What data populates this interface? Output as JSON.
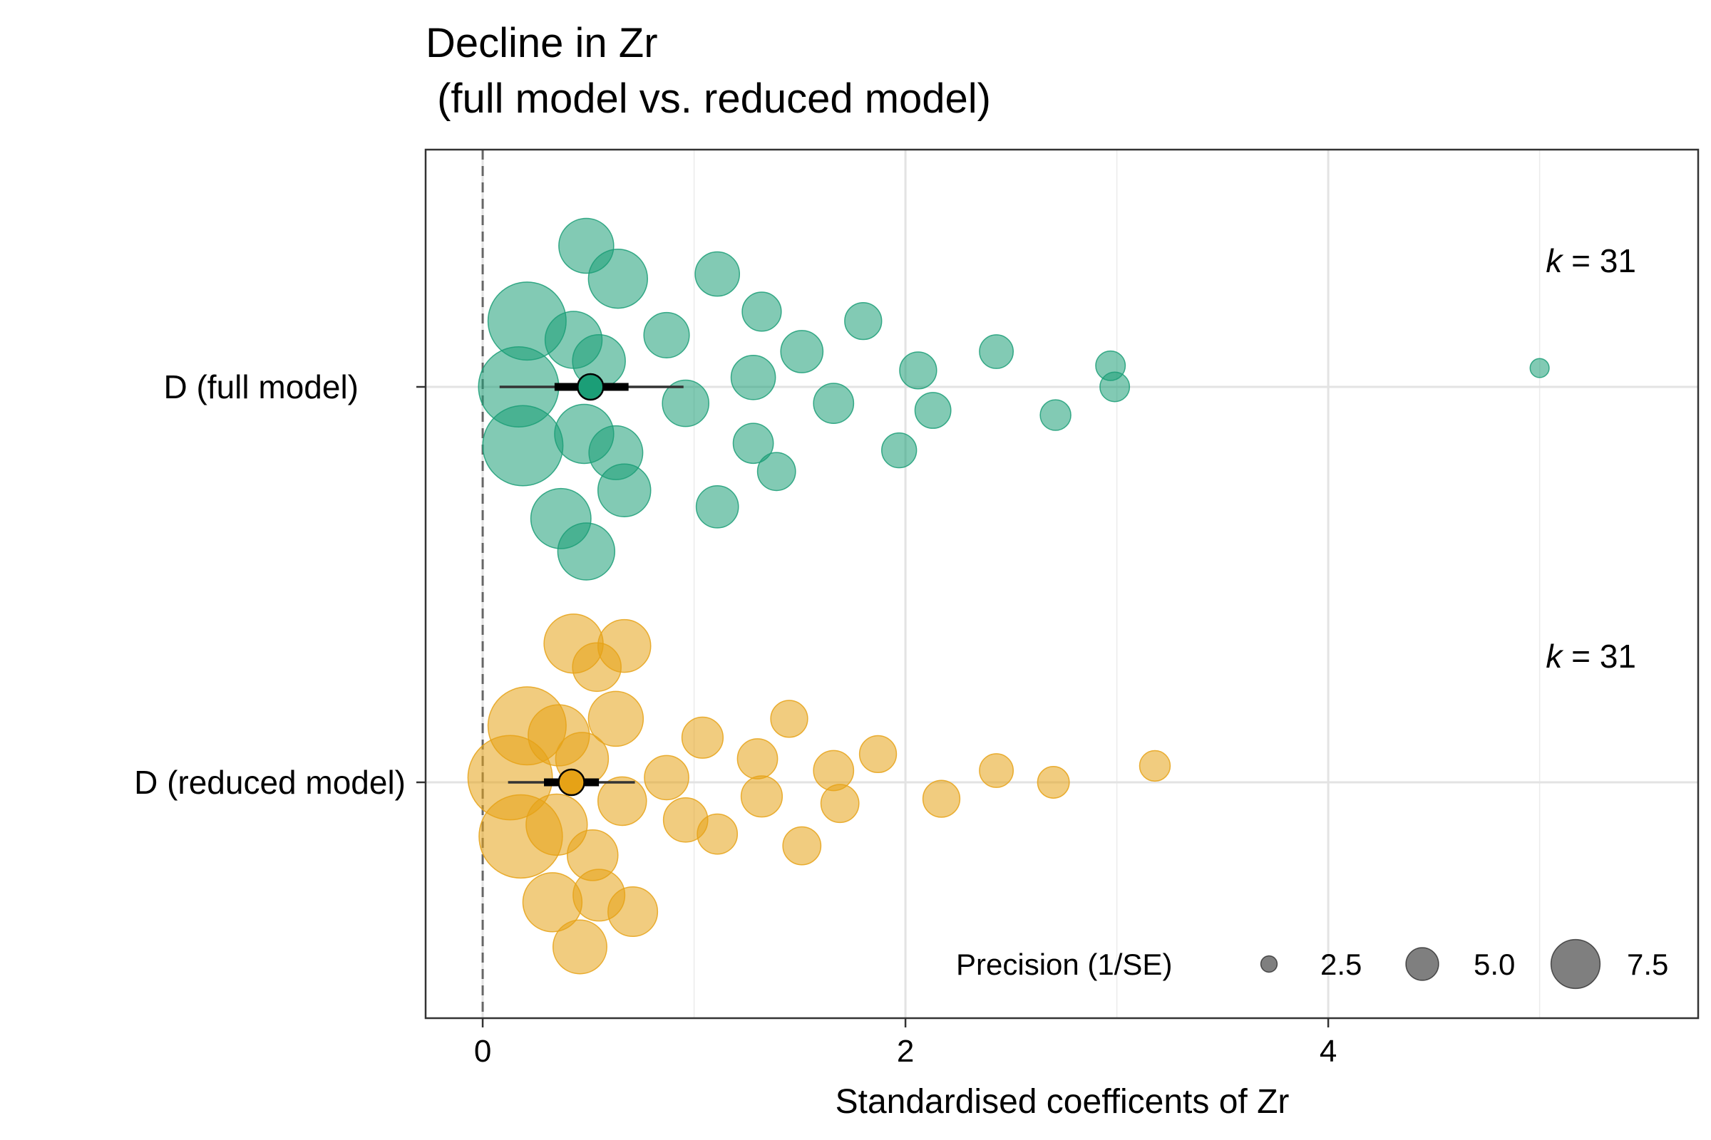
{
  "chart_data": {
    "type": "scatter",
    "subtype": "orchard-plot",
    "title_line1": "Decline in Zr",
    "title_line2": " (full model vs. reduced model)",
    "xlabel": "Standardised coefficents of Zr",
    "ylabel": "",
    "xlim": [
      -0.27,
      5.75
    ],
    "x_ticks": [
      0,
      2,
      4
    ],
    "x_tick_labels": [
      "0",
      "2",
      "4"
    ],
    "x_minor_gridlines": [
      1,
      3,
      5
    ],
    "reference_line_x": 0,
    "grid": true,
    "legend": {
      "title": "Precision (1/SE)",
      "placement": "bottom-right",
      "entries": [
        {
          "label": "2.5",
          "value": 2.5
        },
        {
          "label": "5.0",
          "value": 5.0
        },
        {
          "label": "7.5",
          "value": 7.5
        }
      ]
    },
    "k_label_prefix": "k",
    "k_label_eq": " = ",
    "series": [
      {
        "name": "D (full model)",
        "color": "#1B9E77",
        "k": "31",
        "estimate": 0.51,
        "ci": [
          0.34,
          0.69
        ],
        "pi": [
          0.08,
          0.95
        ],
        "points": [
          {
            "x": 0.49,
            "jitter": 0.3,
            "precision": 5.2
          },
          {
            "x": 0.64,
            "jitter": 0.23,
            "precision": 5.6
          },
          {
            "x": 1.11,
            "jitter": 0.24,
            "precision": 4.2
          },
          {
            "x": 1.32,
            "jitter": 0.16,
            "precision": 3.7
          },
          {
            "x": 1.8,
            "jitter": 0.14,
            "precision": 3.5
          },
          {
            "x": 0.21,
            "jitter": 0.14,
            "precision": 7.4
          },
          {
            "x": 0.43,
            "jitter": 0.1,
            "precision": 5.4
          },
          {
            "x": 0.87,
            "jitter": 0.11,
            "precision": 4.3
          },
          {
            "x": 1.51,
            "jitter": 0.075,
            "precision": 4.0
          },
          {
            "x": 2.43,
            "jitter": 0.075,
            "precision": 3.2
          },
          {
            "x": 0.55,
            "jitter": 0.055,
            "precision": 5.0
          },
          {
            "x": 2.06,
            "jitter": 0.035,
            "precision": 3.5
          },
          {
            "x": 2.97,
            "jitter": 0.045,
            "precision": 2.8
          },
          {
            "x": 5.0,
            "jitter": 0.04,
            "precision": 1.8
          },
          {
            "x": 1.28,
            "jitter": 0.02,
            "precision": 4.2
          },
          {
            "x": 0.17,
            "jitter": 0.0,
            "precision": 7.6
          },
          {
            "x": 2.99,
            "jitter": 0.0,
            "precision": 2.8
          },
          {
            "x": 0.96,
            "jitter": -0.035,
            "precision": 4.4
          },
          {
            "x": 1.66,
            "jitter": -0.035,
            "precision": 3.8
          },
          {
            "x": 2.13,
            "jitter": -0.05,
            "precision": 3.4
          },
          {
            "x": 2.71,
            "jitter": -0.06,
            "precision": 2.9
          },
          {
            "x": 0.48,
            "jitter": -0.1,
            "precision": 5.6
          },
          {
            "x": 0.19,
            "jitter": -0.125,
            "precision": 7.6
          },
          {
            "x": 0.63,
            "jitter": -0.14,
            "precision": 5.1
          },
          {
            "x": 1.28,
            "jitter": -0.12,
            "precision": 3.8
          },
          {
            "x": 1.97,
            "jitter": -0.135,
            "precision": 3.3
          },
          {
            "x": 1.39,
            "jitter": -0.18,
            "precision": 3.6
          },
          {
            "x": 0.67,
            "jitter": -0.22,
            "precision": 5.0
          },
          {
            "x": 1.11,
            "jitter": -0.255,
            "precision": 4.0
          },
          {
            "x": 0.37,
            "jitter": -0.28,
            "precision": 5.7
          },
          {
            "x": 0.49,
            "jitter": -0.35,
            "precision": 5.4
          }
        ]
      },
      {
        "name": "D (reduced model)",
        "color": "#E6A216",
        "k": "31",
        "estimate": 0.42,
        "ci": [
          0.29,
          0.55
        ],
        "pi": [
          0.12,
          0.72
        ],
        "points": [
          {
            "x": 0.43,
            "jitter": 0.295,
            "precision": 5.6
          },
          {
            "x": 0.67,
            "jitter": 0.29,
            "precision": 5.0
          },
          {
            "x": 0.54,
            "jitter": 0.245,
            "precision": 4.6
          },
          {
            "x": 0.21,
            "jitter": 0.12,
            "precision": 7.4
          },
          {
            "x": 0.36,
            "jitter": 0.1,
            "precision": 5.8
          },
          {
            "x": 0.63,
            "jitter": 0.135,
            "precision": 5.2
          },
          {
            "x": 1.04,
            "jitter": 0.095,
            "precision": 3.9
          },
          {
            "x": 1.45,
            "jitter": 0.135,
            "precision": 3.5
          },
          {
            "x": 0.47,
            "jitter": 0.05,
            "precision": 5.0
          },
          {
            "x": 1.3,
            "jitter": 0.05,
            "precision": 3.8
          },
          {
            "x": 1.87,
            "jitter": 0.06,
            "precision": 3.5
          },
          {
            "x": 0.13,
            "jitter": 0.01,
            "precision": 8.0
          },
          {
            "x": 0.87,
            "jitter": 0.01,
            "precision": 4.2
          },
          {
            "x": 1.66,
            "jitter": 0.025,
            "precision": 3.8
          },
          {
            "x": 2.43,
            "jitter": 0.025,
            "precision": 3.2
          },
          {
            "x": 3.18,
            "jitter": 0.035,
            "precision": 2.9
          },
          {
            "x": 2.7,
            "jitter": 0.0,
            "precision": 3.0
          },
          {
            "x": 0.66,
            "jitter": -0.04,
            "precision": 4.6
          },
          {
            "x": 1.32,
            "jitter": -0.03,
            "precision": 3.9
          },
          {
            "x": 1.69,
            "jitter": -0.045,
            "precision": 3.6
          },
          {
            "x": 2.17,
            "jitter": -0.035,
            "precision": 3.5
          },
          {
            "x": 0.35,
            "jitter": -0.09,
            "precision": 5.8
          },
          {
            "x": 0.96,
            "jitter": -0.08,
            "precision": 4.2
          },
          {
            "x": 1.11,
            "jitter": -0.11,
            "precision": 3.8
          },
          {
            "x": 0.18,
            "jitter": -0.115,
            "precision": 7.9
          },
          {
            "x": 0.52,
            "jitter": -0.155,
            "precision": 4.8
          },
          {
            "x": 1.51,
            "jitter": -0.135,
            "precision": 3.6
          },
          {
            "x": 0.33,
            "jitter": -0.255,
            "precision": 5.6
          },
          {
            "x": 0.55,
            "jitter": -0.24,
            "precision": 4.9
          },
          {
            "x": 0.71,
            "jitter": -0.275,
            "precision": 4.7
          },
          {
            "x": 0.46,
            "jitter": -0.35,
            "precision": 5.1
          }
        ]
      }
    ]
  }
}
